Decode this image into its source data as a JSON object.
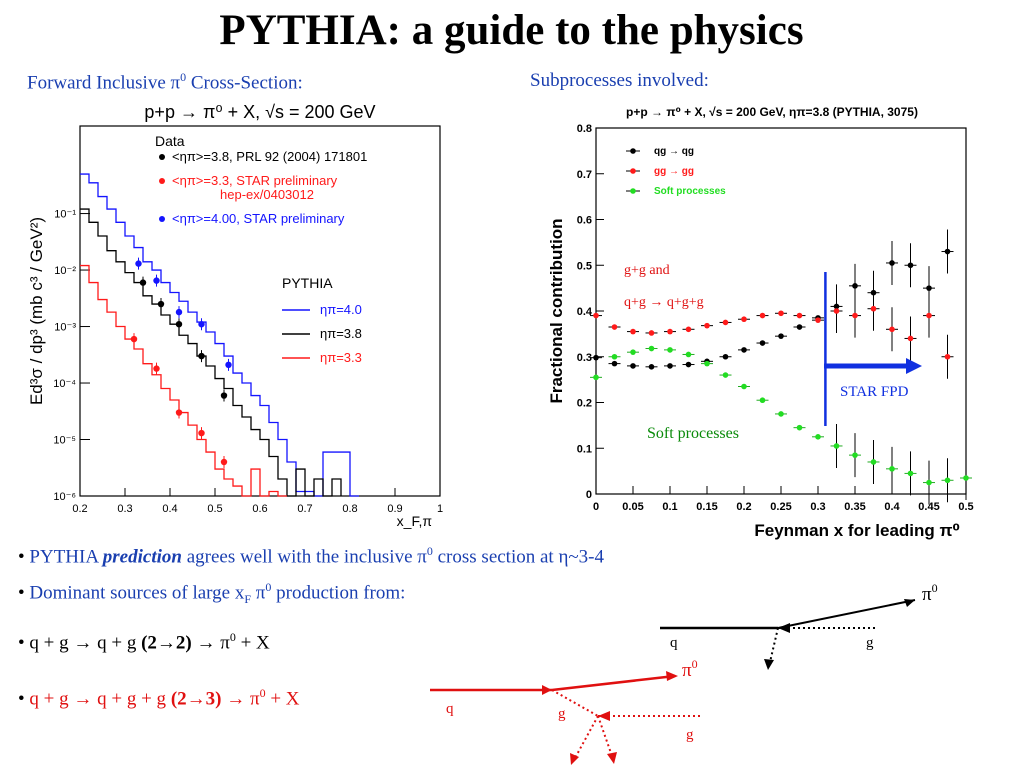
{
  "title": "PYTHIA:  a guide to the physics",
  "left_heading": {
    "text": "Forward Inclusive π",
    "sup": "0",
    "rest": " Cross-Section:"
  },
  "right_heading": "Subprocesses involved:",
  "colors": {
    "data_black": "#000000",
    "data_red": "#ff1a1a",
    "data_blue": "#1414ff",
    "soft_green": "#22dd22",
    "arrow_blue": "#1030e0",
    "heading_blue": "#1a3fb0"
  },
  "chart_data": [
    {
      "type": "line",
      "title": "p+p → π⁰ + X, √s = 200 GeV",
      "xlabel": "x_F,π",
      "ylabel": "Ed³σ / dp³ (mb c³ / GeV²)",
      "xlim": [
        0.2,
        1.0
      ],
      "ylim": [
        1e-06,
        1
      ],
      "log_y": true,
      "x_ticks": [
        "0.2",
        "0.3",
        "0.4",
        "0.5",
        "0.6",
        "0.7",
        "0.8",
        "0.9",
        "1"
      ],
      "y_ticks": [
        "10⁻⁶",
        "10⁻⁵",
        "10⁻⁴",
        "10⁻³",
        "10⁻²",
        "10⁻¹"
      ],
      "legend_title": "Data",
      "legend": [
        {
          "label": "<ηπ>=3.8, PRL 92 (2004) 171801",
          "color": "#000000"
        },
        {
          "label": "<ηπ>=3.3, STAR preliminary",
          "label2": "hep-ex/0403012",
          "color": "#ff1a1a"
        },
        {
          "label": "<ηπ>=4.00, STAR preliminary",
          "color": "#1414ff"
        }
      ],
      "pythia_legend_title": "PYTHIA",
      "pythia_legend": [
        {
          "label": "ηπ=4.0",
          "color": "#1414ff"
        },
        {
          "label": "ηπ=3.8",
          "color": "#000000"
        },
        {
          "label": "ηπ=3.3",
          "color": "#ff1a1a"
        }
      ],
      "series": [
        {
          "name": "<ηπ>=3.8, PRL 92 (2004) 171801",
          "kind": "points",
          "color": "#000000",
          "x": [
            0.34,
            0.38,
            0.42,
            0.47,
            0.52
          ],
          "y": [
            0.006,
            0.0025,
            0.0011,
            0.0003,
            6e-05
          ]
        },
        {
          "name": "<ηπ>=3.3, STAR preliminary",
          "kind": "points",
          "color": "#ff1a1a",
          "x": [
            0.32,
            0.37,
            0.42,
            0.47,
            0.52
          ],
          "y": [
            0.0006,
            0.00018,
            3e-05,
            1.3e-05,
            4e-06
          ]
        },
        {
          "name": "<ηπ>=4.00, STAR preliminary",
          "kind": "points",
          "color": "#1414ff",
          "x": [
            0.33,
            0.37,
            0.42,
            0.47,
            0.53
          ],
          "y": [
            0.013,
            0.0065,
            0.0018,
            0.0011,
            0.00021
          ]
        },
        {
          "name": "ηπ=4.0",
          "kind": "step",
          "color": "#1414ff",
          "x": [
            0.2,
            0.22,
            0.24,
            0.26,
            0.28,
            0.3,
            0.32,
            0.34,
            0.36,
            0.38,
            0.4,
            0.42,
            0.44,
            0.46,
            0.48,
            0.5,
            0.52,
            0.54,
            0.56,
            0.58,
            0.6,
            0.62,
            0.64,
            0.66,
            0.68,
            0.72,
            0.74,
            0.8
          ],
          "y": [
            0.5,
            0.35,
            0.2,
            0.12,
            0.07,
            0.04,
            0.025,
            0.014,
            0.01,
            0.006,
            0.004,
            0.0028,
            0.0018,
            0.0012,
            0.0008,
            0.0005,
            0.0003,
            0.00015,
            0.0001,
            6e-05,
            4e-05,
            2e-05,
            1e-05,
            4e-06,
            1.2e-06,
            1e-06,
            6e-06,
            1e-06
          ]
        },
        {
          "name": "ηπ=3.8",
          "kind": "step",
          "color": "#000000",
          "x": [
            0.2,
            0.22,
            0.24,
            0.26,
            0.28,
            0.3,
            0.32,
            0.34,
            0.36,
            0.38,
            0.4,
            0.42,
            0.44,
            0.46,
            0.48,
            0.5,
            0.52,
            0.54,
            0.56,
            0.58,
            0.6,
            0.62,
            0.64,
            0.66,
            0.68,
            0.7,
            0.72,
            0.74,
            0.76
          ],
          "y": [
            0.12,
            0.07,
            0.04,
            0.022,
            0.014,
            0.009,
            0.006,
            0.0035,
            0.0025,
            0.0016,
            0.0011,
            0.0007,
            0.0005,
            0.0003,
            0.0002,
            0.00012,
            8e-05,
            4e-05,
            2.5e-05,
            1.5e-05,
            1e-05,
            5e-06,
            2e-06,
            1e-06,
            3e-06,
            1e-06,
            2e-06,
            1e-06,
            2e-06
          ]
        },
        {
          "name": "ηπ=3.3",
          "kind": "step",
          "color": "#ff1a1a",
          "x": [
            0.2,
            0.22,
            0.24,
            0.26,
            0.28,
            0.3,
            0.32,
            0.34,
            0.36,
            0.38,
            0.4,
            0.42,
            0.44,
            0.46,
            0.48,
            0.5,
            0.52,
            0.54,
            0.56,
            0.58,
            0.6,
            0.62,
            0.64
          ],
          "y": [
            0.012,
            0.006,
            0.003,
            0.0018,
            0.001,
            0.0006,
            0.0004,
            0.00022,
            0.00014,
            8e-05,
            5e-05,
            3e-05,
            1.8e-05,
            1e-05,
            6e-06,
            3e-06,
            2e-06,
            1.5e-06,
            1e-06,
            3e-06,
            1e-06,
            1.2e-06,
            1e-06
          ]
        }
      ]
    },
    {
      "type": "scatter",
      "title": "p+p → π⁰ + X, √s = 200 GeV, ηπ=3.8 (PYTHIA, 3075)",
      "xlabel": "Feynman x for leading π⁰",
      "ylabel": "Fractional contribution",
      "xlim": [
        0,
        0.5
      ],
      "ylim": [
        0,
        0.8
      ],
      "x_ticks": [
        "0",
        "0.05",
        "0.1",
        "0.15",
        "0.2",
        "0.25",
        "0.3",
        "0.35",
        "0.4",
        "0.45",
        "0.5"
      ],
      "y_ticks": [
        "0",
        "0.1",
        "0.2",
        "0.3",
        "0.4",
        "0.5",
        "0.6",
        "0.7",
        "0.8"
      ],
      "legend": [
        {
          "label": "qg → qg",
          "color": "#000000"
        },
        {
          "label": "gg → gg",
          "color": "#ff1a1a"
        },
        {
          "label": "Soft processes",
          "color": "#22dd22"
        }
      ],
      "series": [
        {
          "name": "qg → qg",
          "color": "#000000",
          "x": [
            0.0,
            0.025,
            0.05,
            0.075,
            0.1,
            0.125,
            0.15,
            0.175,
            0.2,
            0.225,
            0.25,
            0.275,
            0.3,
            0.325,
            0.35,
            0.375,
            0.4,
            0.425,
            0.45,
            0.475
          ],
          "y": [
            0.298,
            0.285,
            0.28,
            0.278,
            0.28,
            0.283,
            0.29,
            0.3,
            0.315,
            0.33,
            0.345,
            0.365,
            0.385,
            0.41,
            0.455,
            0.44,
            0.505,
            0.5,
            0.45,
            0.53
          ]
        },
        {
          "name": "gg → gg",
          "color": "#ff1a1a",
          "x": [
            0.0,
            0.025,
            0.05,
            0.075,
            0.1,
            0.125,
            0.15,
            0.175,
            0.2,
            0.225,
            0.25,
            0.275,
            0.3,
            0.325,
            0.35,
            0.375,
            0.4,
            0.425,
            0.45,
            0.475
          ],
          "y": [
            0.39,
            0.365,
            0.355,
            0.352,
            0.355,
            0.36,
            0.368,
            0.375,
            0.382,
            0.39,
            0.395,
            0.39,
            0.38,
            0.4,
            0.39,
            0.405,
            0.36,
            0.34,
            0.39,
            0.3
          ]
        },
        {
          "name": "Soft processes",
          "color": "#22dd22",
          "x": [
            0.0,
            0.025,
            0.05,
            0.075,
            0.1,
            0.125,
            0.15,
            0.175,
            0.2,
            0.225,
            0.25,
            0.275,
            0.3,
            0.325,
            0.35,
            0.375,
            0.4,
            0.425,
            0.45,
            0.475,
            0.5
          ],
          "y": [
            0.255,
            0.3,
            0.31,
            0.318,
            0.315,
            0.305,
            0.285,
            0.26,
            0.235,
            0.205,
            0.175,
            0.145,
            0.125,
            0.105,
            0.085,
            0.07,
            0.055,
            0.045,
            0.025,
            0.03,
            0.035
          ]
        }
      ],
      "annotations": {
        "gg_label_line1": "g+g and",
        "gg_label_line2": "q+g → q+g+g",
        "soft_label": "Soft processes",
        "star_fpd": "STAR FPD",
        "star_fpd_x": 0.31
      }
    }
  ],
  "bullets": [
    {
      "pre": "PYTHIA ",
      "em": "prediction",
      "post": " agrees well with the inclusive π",
      "sup": "0",
      "post2": " cross section at η~3-4"
    },
    {
      "pre": "Dominant sources of large x",
      "sub": "F",
      "mid": " π",
      "sup": "0",
      "post": " production from:"
    },
    {
      "pre": "q + g → q + g ",
      "bold": "(2→2)",
      "post": " → π",
      "sup": "0",
      "post2": " + X"
    },
    {
      "pre": "q + g → q + g + g ",
      "bold": "(2→3)",
      "post": " → π",
      "sup": "0",
      "post2": " + X"
    }
  ],
  "diagram1": {
    "q": "q",
    "g": "g",
    "pi": "π",
    "pi_sup": "0"
  },
  "diagram2": {
    "q": "q",
    "g1": "g",
    "g2": "g",
    "pi": "π",
    "pi_sup": "0"
  }
}
